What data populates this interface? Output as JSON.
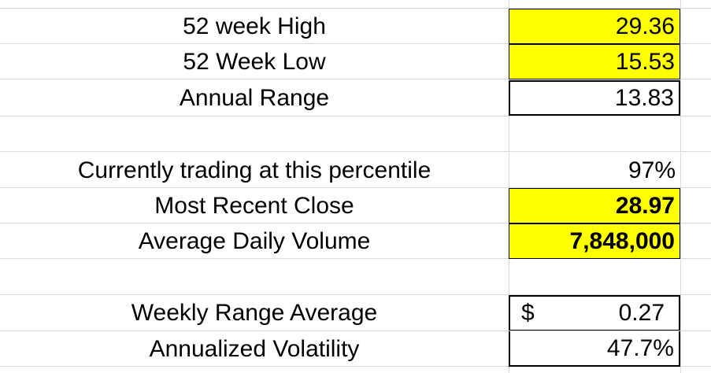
{
  "rows": [
    {
      "label": "52 week High",
      "value": "29.36"
    },
    {
      "label": "52 Week Low",
      "value": "15.53"
    },
    {
      "label": "Annual Range",
      "value": "13.83"
    },
    {
      "label": "Currently trading at this percentile",
      "value": "97%"
    },
    {
      "label": "Most Recent Close",
      "value": "28.97"
    },
    {
      "label": "Average Daily Volume",
      "value": "7,848,000"
    },
    {
      "label": "Weekly Range Average",
      "currency": "$",
      "value": "0.27"
    },
    {
      "label": "Annualized Volatility",
      "value": "47.7%"
    }
  ],
  "colors": {
    "highlight": "#ffff00",
    "gridline": "#d9d9d9",
    "border": "#000000"
  }
}
